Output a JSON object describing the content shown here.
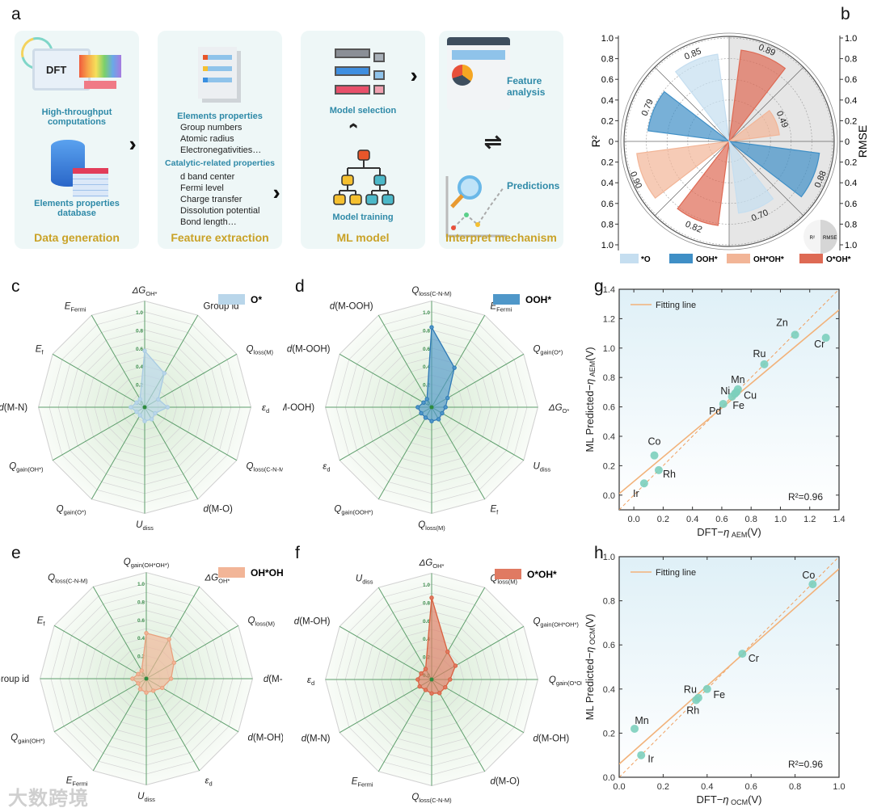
{
  "panel_labels": {
    "a": "a",
    "b": "b",
    "c": "c",
    "d": "d",
    "e": "e",
    "f": "f",
    "g": "g",
    "h": "h"
  },
  "workflow": {
    "data_generation": {
      "title": "Data generation",
      "dft_icon_text": "DFT",
      "hpc_label": "High-throughput computations",
      "db_label": "Elements properties database"
    },
    "feature_extraction": {
      "title": "Feature extraction",
      "elements_heading": "Elements  properties",
      "elements_items": [
        "Group numbers",
        "Atomic radius",
        "Electronegativities…"
      ],
      "catalytic_heading": "Catalytic-related properties",
      "catalytic_items": [
        "d band center",
        "Fermi level",
        "Charge transfer",
        "Dissolution potential",
        "Bond length…"
      ]
    },
    "ml_model": {
      "title": "ML model",
      "selection_label": "Model selection",
      "training_label": "Model training"
    },
    "interpret": {
      "title": "Interpret mechanism",
      "feature_analysis_label": "Feature analysis",
      "predictions_label": "Predictions"
    }
  },
  "watermark": "大数跨境",
  "chart_data": [
    {
      "id": "b",
      "type": "polar-bar",
      "left_axis_label": "R²",
      "right_axis_label": "RMSE",
      "left_ticks": [
        "1.0",
        "0.8",
        "0.6",
        "0.4",
        "0.2",
        "0",
        "0.2",
        "0.4",
        "0.6",
        "0.8",
        "1.0"
      ],
      "right_ticks": [
        "1.0",
        "0.8",
        "0.6",
        "0.4",
        "0.2",
        "0",
        "0.2",
        "0.4",
        "0.6",
        "0.8",
        "1.0"
      ],
      "inset_legend": [
        "R²",
        "RMSE"
      ],
      "legend": [
        {
          "name": "*O",
          "color": "#c5def0"
        },
        {
          "name": "OOH*",
          "color": "#3f8fc6"
        },
        {
          "name": "OH*OH*",
          "color": "#f2b597"
        },
        {
          "name": "O*OH*",
          "color": "#de6a54"
        }
      ],
      "bars": [
        {
          "series": "*O",
          "half": "R²",
          "value": 0.85,
          "label": "0.85"
        },
        {
          "series": "OOH*",
          "half": "R²",
          "value": 0.79,
          "label": "0.79"
        },
        {
          "series": "OH*OH*",
          "half": "R²",
          "value": 0.9,
          "label": "0.90"
        },
        {
          "series": "O*OH*",
          "half": "R²",
          "value": 0.82,
          "label": "0.82"
        },
        {
          "series": "O*OH*",
          "half": "RMSE",
          "value": 0.89,
          "label": "0.89"
        },
        {
          "series": "OH*OH*",
          "half": "RMSE",
          "value": 0.49,
          "label": "0.49"
        },
        {
          "series": "OOH*",
          "half": "RMSE",
          "value": 0.88,
          "label": "0.88"
        },
        {
          "series": "*O",
          "half": "RMSE",
          "value": 0.7,
          "label": "0.70"
        }
      ],
      "rlim": [
        0,
        1.0
      ]
    },
    {
      "id": "c",
      "type": "radar",
      "legend": "O*",
      "color": "#b9d6ea",
      "stroke": "#a9cbe3",
      "ticks": [
        "0.0",
        "0.2",
        "0.4",
        "0.6",
        "0.8",
        "1.0"
      ],
      "axes": [
        {
          "main": "ΔG",
          "sub": "OH*",
          "rest": ""
        },
        {
          "main": "",
          "sub": "",
          "rest": "Group id"
        },
        {
          "main": "Q",
          "sub": "loss(M)",
          "rest": ""
        },
        {
          "main": "ε",
          "sub": "d",
          "rest": ""
        },
        {
          "main": "Q",
          "sub": "loss(C-N-M)",
          "rest": ""
        },
        {
          "main": "d",
          "sub": "",
          "rest": "(M-O)"
        },
        {
          "main": "U",
          "sub": "diss",
          "rest": ""
        },
        {
          "main": "Q",
          "sub": "gain(O*)",
          "rest": ""
        },
        {
          "main": "Q",
          "sub": "gain(OH*)",
          "rest": ""
        },
        {
          "main": "d",
          "sub": "",
          "rest": "(M-N)"
        },
        {
          "main": "E",
          "sub": "f",
          "rest": ""
        },
        {
          "main": "E",
          "sub": "Fermi",
          "rest": ""
        }
      ],
      "values": [
        0.57,
        0.38,
        0.12,
        0.2,
        0.08,
        0.1,
        0.1,
        0.05,
        0.05,
        0.1,
        0.05,
        0.05
      ]
    },
    {
      "id": "d",
      "type": "radar",
      "legend": "OOH*",
      "color": "#4f97c9",
      "stroke": "#2f7ab5",
      "ticks": [
        "0.0",
        "0.2",
        "0.4",
        "0.6",
        "0.8",
        "1.0"
      ],
      "axes": [
        {
          "main": "Q",
          "sub": "loss(C-N-M)",
          "rest": ""
        },
        {
          "main": "E",
          "sub": "Fermi",
          "rest": ""
        },
        {
          "main": "Q",
          "sub": "gain(O*)",
          "rest": ""
        },
        {
          "main": "ΔG",
          "sub": "O*",
          "rest": ""
        },
        {
          "main": "U",
          "sub": "diss",
          "rest": ""
        },
        {
          "main": "E",
          "sub": "f",
          "rest": ""
        },
        {
          "main": "Q",
          "sub": "loss(M)",
          "rest": ""
        },
        {
          "main": "Q",
          "sub": "gain(OOH*)",
          "rest": ""
        },
        {
          "main": "ε",
          "sub": "d",
          "rest": ""
        },
        {
          "main": "d",
          "sub": "",
          "rest": "(M-OOH)"
        },
        {
          "main": "d",
          "sub": "",
          "rest": "(M-OOH)"
        },
        {
          "main": "d",
          "sub": "",
          "rest": "(M-OOH)"
        }
      ],
      "values": [
        0.83,
        0.45,
        0.15,
        0.1,
        0.08,
        0.1,
        0.1,
        0.08,
        0.08,
        0.1,
        0.05,
        0.05
      ]
    },
    {
      "id": "e",
      "type": "radar",
      "legend": "OH*OH*",
      "color": "#f2b597",
      "stroke": "#e8a07e",
      "ticks": [
        "0.0",
        "0.2",
        "0.4",
        "0.6",
        "0.8",
        "1.0"
      ],
      "axes": [
        {
          "main": "Q",
          "sub": "gain(OH*OH*)",
          "rest": ""
        },
        {
          "main": "ΔG",
          "sub": "OH*",
          "rest": ""
        },
        {
          "main": "Q",
          "sub": "loss(M)",
          "rest": ""
        },
        {
          "main": "d",
          "sub": "",
          "rest": "(M-N)"
        },
        {
          "main": "d",
          "sub": "",
          "rest": "(M-OH)"
        },
        {
          "main": "ε",
          "sub": "d",
          "rest": ""
        },
        {
          "main": "U",
          "sub": "diss",
          "rest": ""
        },
        {
          "main": "E",
          "sub": "Fermi",
          "rest": ""
        },
        {
          "main": "Q",
          "sub": "gain(OH*)",
          "rest": ""
        },
        {
          "main": "",
          "sub": "",
          "rest": "Group id"
        },
        {
          "main": "E",
          "sub": "f",
          "rest": ""
        },
        {
          "main": "Q",
          "sub": "loss(C-N-M)",
          "rest": ""
        }
      ],
      "values": [
        0.45,
        0.45,
        0.3,
        0.22,
        0.15,
        0.1,
        0.1,
        0.08,
        0.05,
        0.1,
        0.05,
        0.05
      ]
    },
    {
      "id": "f",
      "type": "radar",
      "legend": "O*OH*",
      "color": "#e07a62",
      "stroke": "#d9603f",
      "ticks": [
        "0.0",
        "0.2",
        "0.4",
        "0.6",
        "0.8",
        "1.0"
      ],
      "axes": [
        {
          "main": "ΔG",
          "sub": "OH*",
          "rest": ""
        },
        {
          "main": "Q",
          "sub": "loss(M)",
          "rest": ""
        },
        {
          "main": "Q",
          "sub": "gain(OH*OH*)",
          "rest": ""
        },
        {
          "main": "Q",
          "sub": "gain(O*OH*)",
          "rest": ""
        },
        {
          "main": "d",
          "sub": "",
          "rest": "(M-OH)"
        },
        {
          "main": "d",
          "sub": "",
          "rest": "(M-O)"
        },
        {
          "main": "Q",
          "sub": "loss(C-N-M)",
          "rest": ""
        },
        {
          "main": "E",
          "sub": "Fermi",
          "rest": ""
        },
        {
          "main": "d",
          "sub": "",
          "rest": "(M-N)"
        },
        {
          "main": "ε",
          "sub": "d",
          "rest": ""
        },
        {
          "main": "d",
          "sub": "",
          "rest": "(M-OH)"
        },
        {
          "main": "U",
          "sub": "diss",
          "rest": ""
        }
      ],
      "values": [
        0.85,
        0.3,
        0.25,
        0.15,
        0.12,
        0.12,
        0.1,
        0.08,
        0.1,
        0.1,
        0.08,
        0.08
      ]
    },
    {
      "id": "g",
      "type": "scatter",
      "xlabel": {
        "pre": "DFT−",
        "eta": "η",
        "sub": "AEM",
        "post": "(V)"
      },
      "ylabel": {
        "pre": "ML Predicted−",
        "eta": "η",
        "sub": "AEM",
        "post": "(V)"
      },
      "xlim": [
        -0.1,
        1.4
      ],
      "ylim": [
        -0.1,
        1.4
      ],
      "xticks": [
        "0.0",
        "0.2",
        "0.4",
        "0.6",
        "0.8",
        "1.0",
        "1.2",
        "1.4"
      ],
      "yticks": [
        "0.0",
        "0.2",
        "0.4",
        "0.6",
        "0.8",
        "1.0",
        "1.2",
        "1.4"
      ],
      "tick_values": [
        0,
        0.2,
        0.4,
        0.6,
        0.8,
        1.0,
        1.2,
        1.4
      ],
      "legend": "Fitting line",
      "annotation": "R²=0.96",
      "fit": {
        "slope": 0.833,
        "intercept": 0.093
      },
      "points": [
        {
          "label": "Ir",
          "x": 0.07,
          "y": 0.08
        },
        {
          "label": "Co",
          "x": 0.14,
          "y": 0.27
        },
        {
          "label": "Rh",
          "x": 0.17,
          "y": 0.17
        },
        {
          "label": "Pd",
          "x": 0.61,
          "y": 0.62
        },
        {
          "label": "Fe",
          "x": 0.67,
          "y": 0.67
        },
        {
          "label": "Ni",
          "x": 0.69,
          "y": 0.69
        },
        {
          "label": "Cu",
          "x": 0.7,
          "y": 0.7
        },
        {
          "label": "Mn",
          "x": 0.71,
          "y": 0.72
        },
        {
          "label": "Ru",
          "x": 0.89,
          "y": 0.89
        },
        {
          "label": "Zn",
          "x": 1.1,
          "y": 1.09
        },
        {
          "label": "Cr",
          "x": 1.31,
          "y": 1.07
        }
      ]
    },
    {
      "id": "h",
      "type": "scatter",
      "xlabel": {
        "pre": "DFT−",
        "eta": "η",
        "sub": "OCM",
        "post": "(V)"
      },
      "ylabel": {
        "pre": "ML Predicted−",
        "eta": "η",
        "sub": "OCM",
        "post": "(V)"
      },
      "xlim": [
        0,
        1.0
      ],
      "ylim": [
        0,
        1.0
      ],
      "xticks": [
        "0.0",
        "0.2",
        "0.4",
        "0.6",
        "0.8",
        "1.0"
      ],
      "yticks": [
        "0.0",
        "0.2",
        "0.4",
        "0.6",
        "0.8",
        "1.0"
      ],
      "tick_values": [
        0,
        0.2,
        0.4,
        0.6,
        0.8,
        1.0
      ],
      "legend": "Fitting line",
      "annotation": "R²=0.96",
      "fit": {
        "slope": 0.885,
        "intercept": 0.06
      },
      "points": [
        {
          "label": "Mn",
          "x": 0.07,
          "y": 0.22
        },
        {
          "label": "Ir",
          "x": 0.1,
          "y": 0.1
        },
        {
          "label": "Rh",
          "x": 0.35,
          "y": 0.35
        },
        {
          "label": "Ru",
          "x": 0.36,
          "y": 0.36
        },
        {
          "label": "Fe",
          "x": 0.4,
          "y": 0.4
        },
        {
          "label": "Cr",
          "x": 0.56,
          "y": 0.56
        },
        {
          "label": "Co",
          "x": 0.88,
          "y": 0.875
        }
      ]
    }
  ]
}
